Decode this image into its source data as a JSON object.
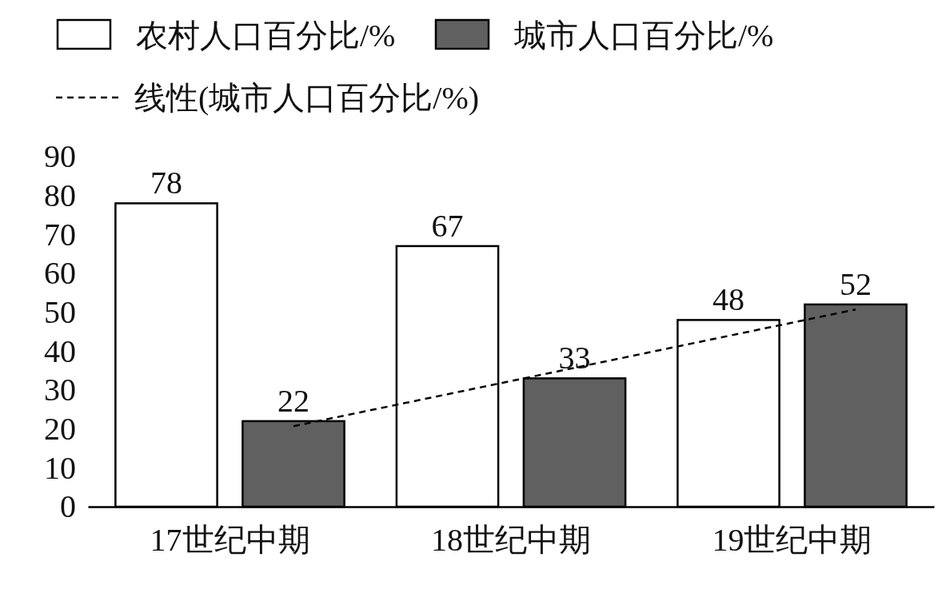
{
  "chart_data": {
    "type": "bar",
    "categories": [
      "17世纪中期",
      "18世纪中期",
      "19世纪中期"
    ],
    "series": [
      {
        "name": "农村人口百分比/%",
        "color": "#ffffff",
        "values": [
          78,
          67,
          48
        ],
        "value_labels": [
          "78",
          "67",
          "48"
        ]
      },
      {
        "name": "城市人口百分比/%",
        "color": "#606060",
        "values": [
          22,
          33,
          52
        ],
        "value_labels": [
          "22",
          "33",
          "52"
        ]
      },
      {
        "name": "线性(城市人口百分比/%)",
        "type": "line",
        "color": "#000000",
        "line_style": "dashed",
        "values": [
          20.7,
          35.7,
          50.7
        ]
      }
    ],
    "ylim": [
      0,
      90
    ],
    "yticks": [
      0,
      10,
      20,
      30,
      40,
      50,
      60,
      70,
      80,
      90
    ],
    "grid": false,
    "legend": "top"
  }
}
